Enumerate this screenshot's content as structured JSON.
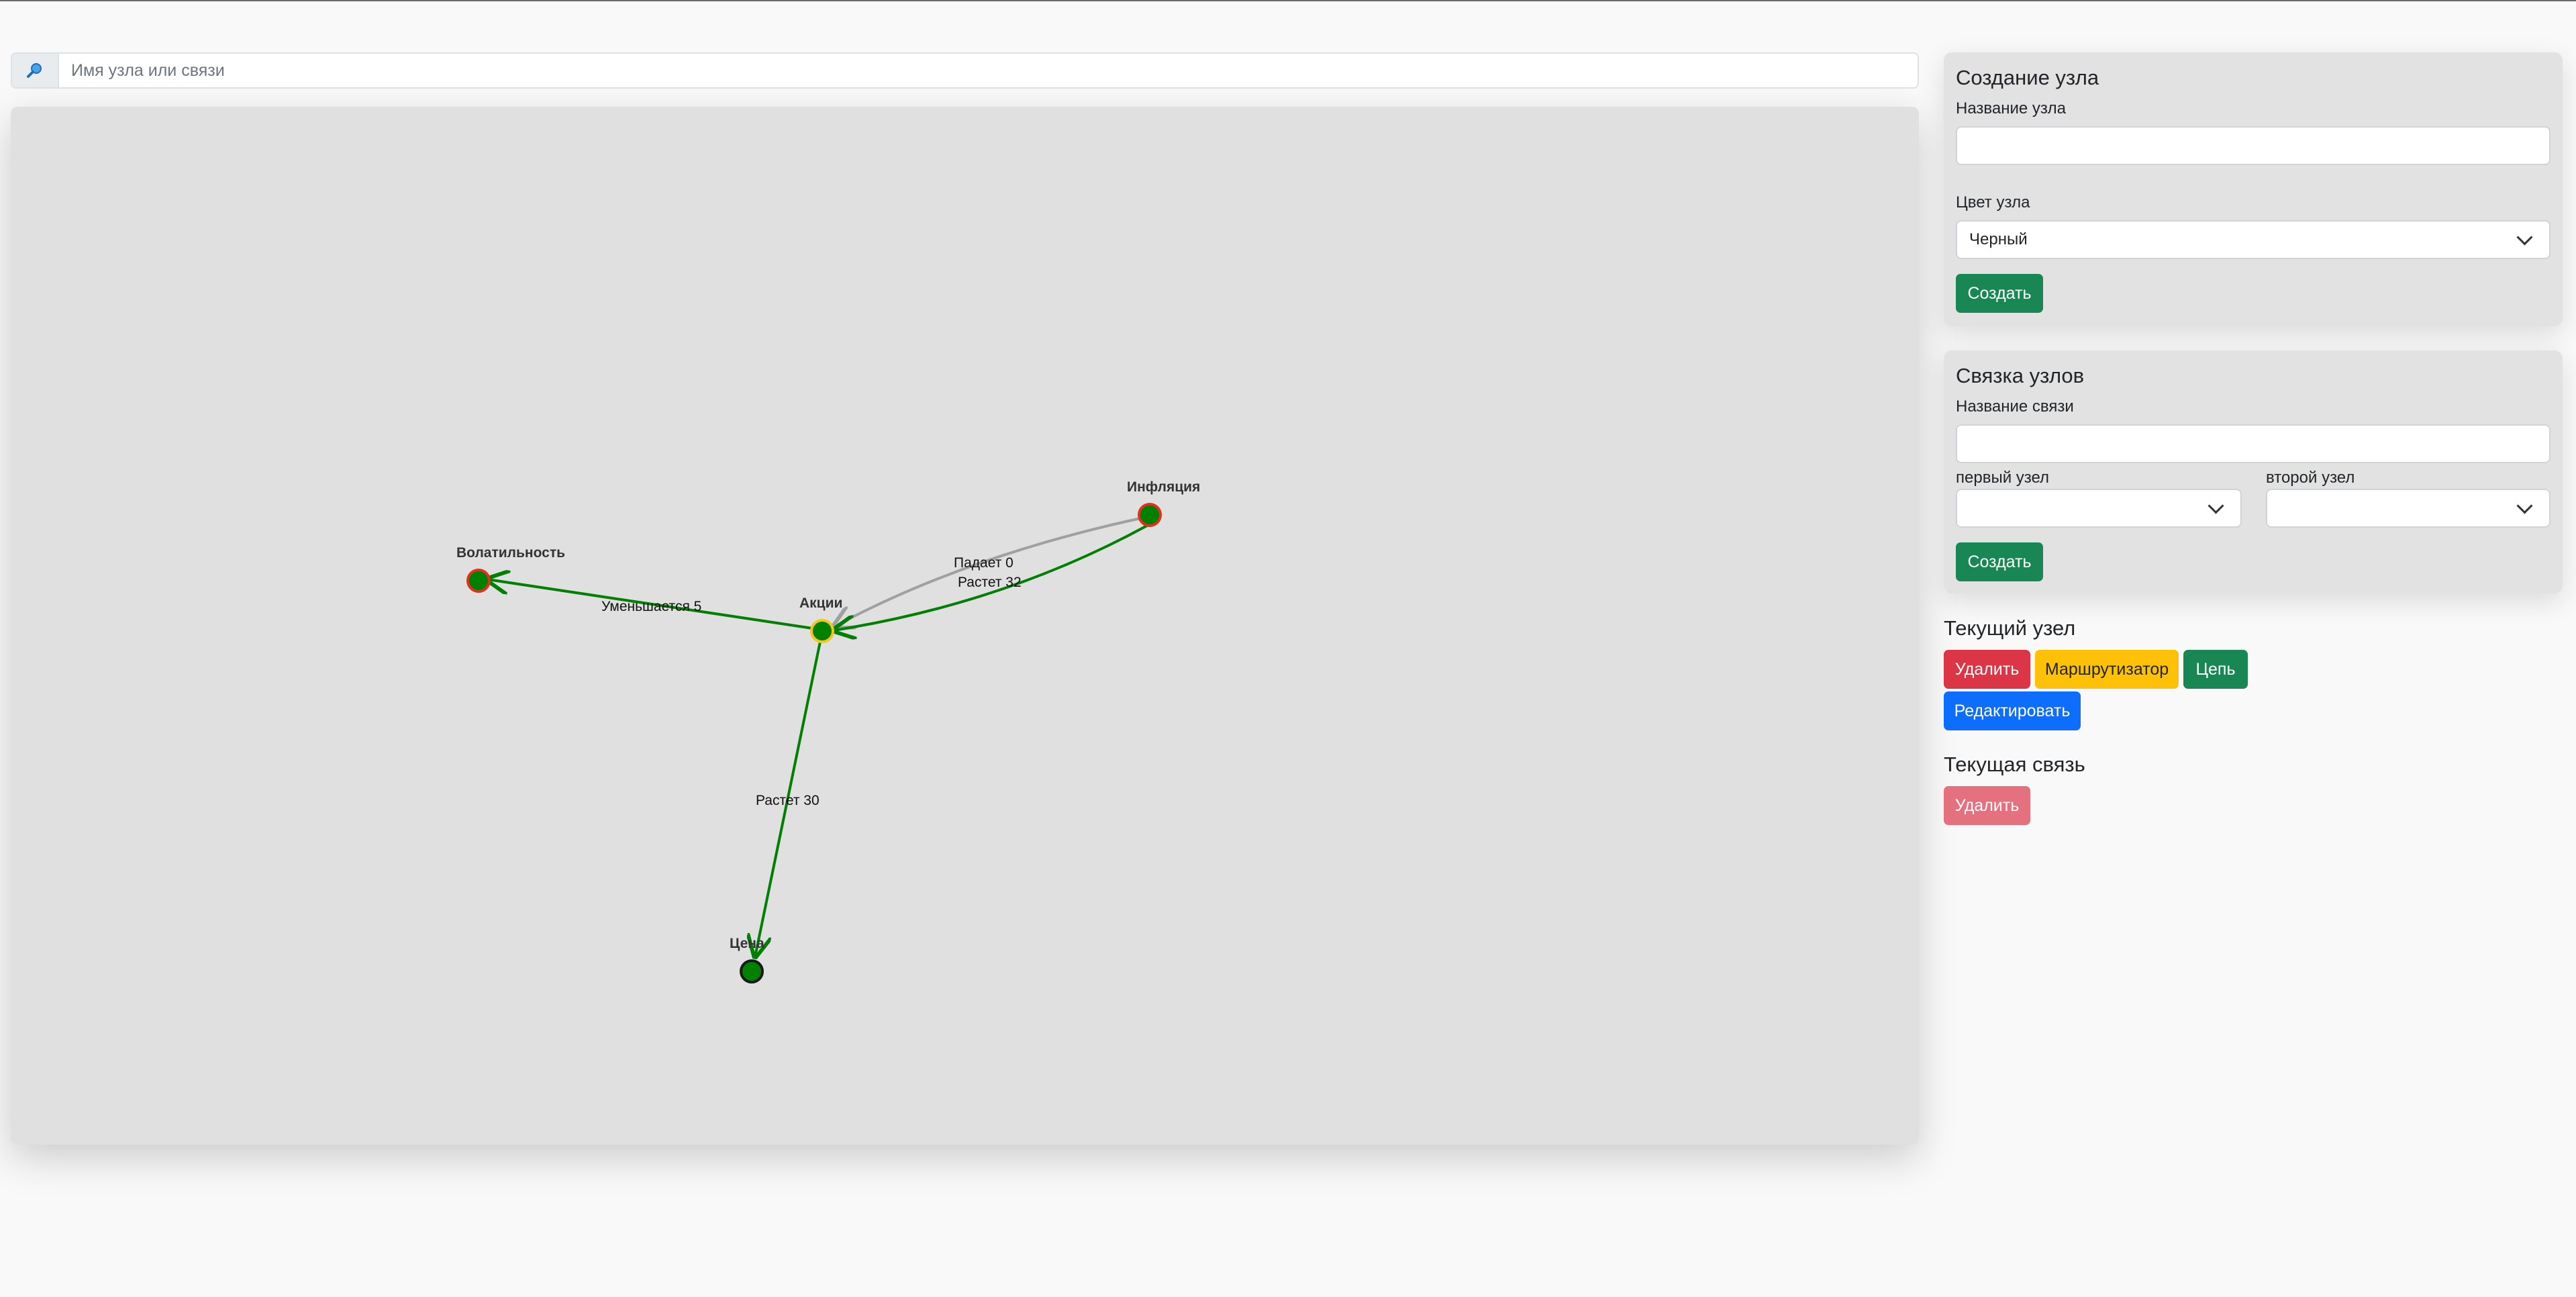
{
  "search": {
    "placeholder": "Имя узла или связи",
    "icon": "search-icon"
  },
  "graph": {
    "nodes": [
      {
        "id": "volatility",
        "label": "Волатильность",
        "fill": "#008000",
        "stroke": "#e0301e"
      },
      {
        "id": "stocks",
        "label": "Акции",
        "fill": "#008000",
        "stroke": "#f5c518"
      },
      {
        "id": "inflation",
        "label": "Инфляция",
        "fill": "#008000",
        "stroke": "#e0301e"
      },
      {
        "id": "price",
        "label": "Цена",
        "fill": "#008000",
        "stroke": "#1a1a1a"
      }
    ],
    "edges": [
      {
        "from": "stocks",
        "to": "volatility",
        "label": "Уменьшается 5",
        "color": "#008000"
      },
      {
        "from": "inflation",
        "to": "stocks",
        "label": "Падает 0",
        "color": "#a0a0a0"
      },
      {
        "from": "inflation",
        "to": "stocks",
        "label": "Растет 32",
        "color": "#008000"
      },
      {
        "from": "stocks",
        "to": "price",
        "label": "Растет 30",
        "color": "#008000"
      }
    ]
  },
  "create_node": {
    "title": "Создание узла",
    "name_label": "Название узла",
    "name_value": "",
    "color_label": "Цвет узла",
    "color_selected": "Черный",
    "submit_label": "Создать"
  },
  "link_nodes": {
    "title": "Связка узлов",
    "name_label": "Название связи",
    "name_value": "",
    "first_label": "первый узел",
    "first_selected": "",
    "second_label": "второй узел",
    "second_selected": "",
    "submit_label": "Создать"
  },
  "current_node": {
    "title": "Текущий узел",
    "delete_label": "Удалить",
    "router_label": "Маршрутизатор",
    "chain_label": "Цепь",
    "edit_label": "Редактировать"
  },
  "current_link": {
    "title": "Текущая связь",
    "delete_label": "Удалить"
  },
  "colors": {
    "primary_green": "#198754",
    "danger": "#dc3545",
    "warning": "#ffc107",
    "primary_blue": "#0d6efd"
  }
}
